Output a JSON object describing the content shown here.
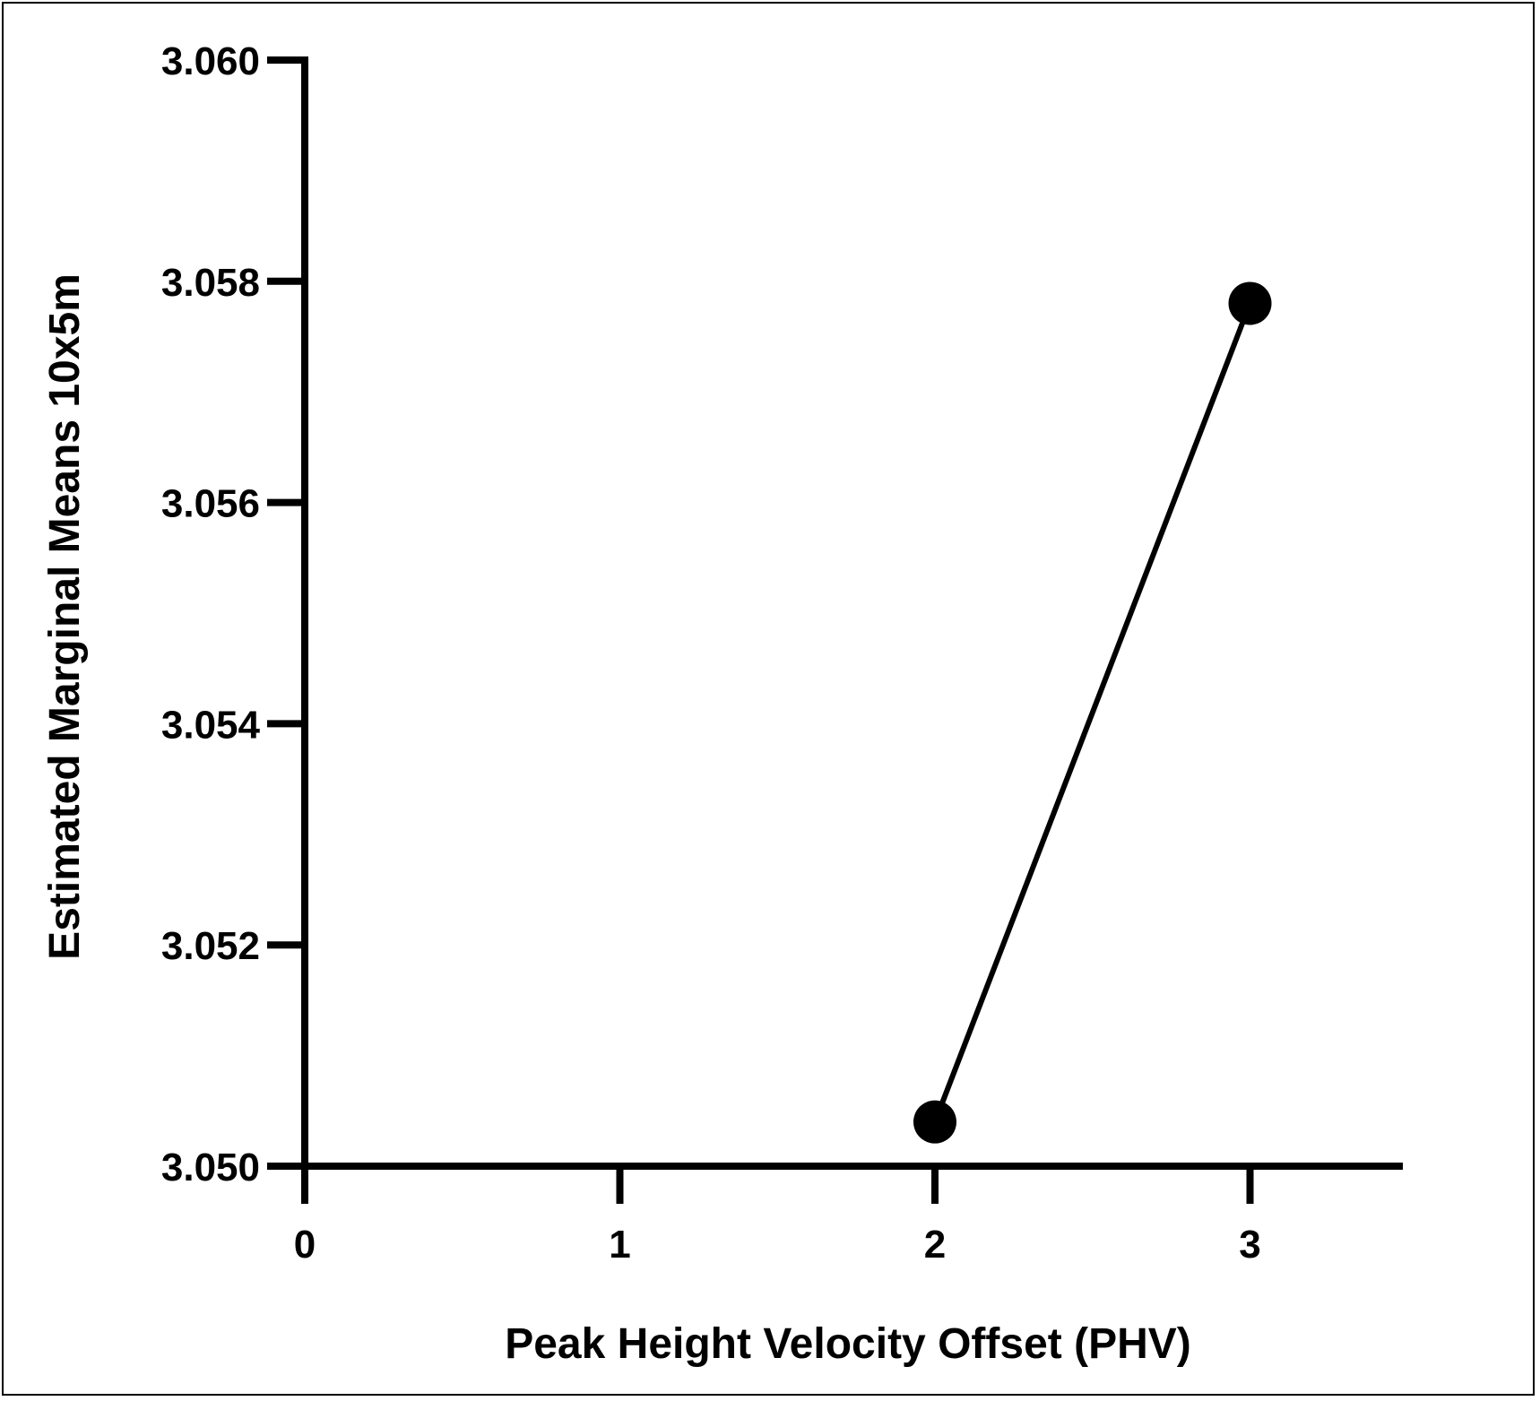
{
  "chart_data": {
    "type": "line",
    "xlabel": "Peak Height Velocity Offset (PHV)",
    "ylabel": "Estimated Marginal Means 10x5m",
    "xlim": [
      0,
      3.5
    ],
    "ylim": [
      3.05,
      3.06
    ],
    "x_ticks": [
      0,
      1,
      2,
      3
    ],
    "x_tick_labels": [
      "0",
      "1",
      "2",
      "3"
    ],
    "y_ticks": [
      3.05,
      3.052,
      3.054,
      3.056,
      3.058,
      3.06
    ],
    "y_tick_labels": [
      "3.050",
      "3.052",
      "3.054",
      "3.056",
      "3.058",
      "3.060"
    ],
    "grid": false,
    "series": [
      {
        "x": [
          2,
          3
        ],
        "values": [
          3.0504,
          3.0578
        ],
        "color": "#000000",
        "marker": "circle"
      }
    ]
  }
}
